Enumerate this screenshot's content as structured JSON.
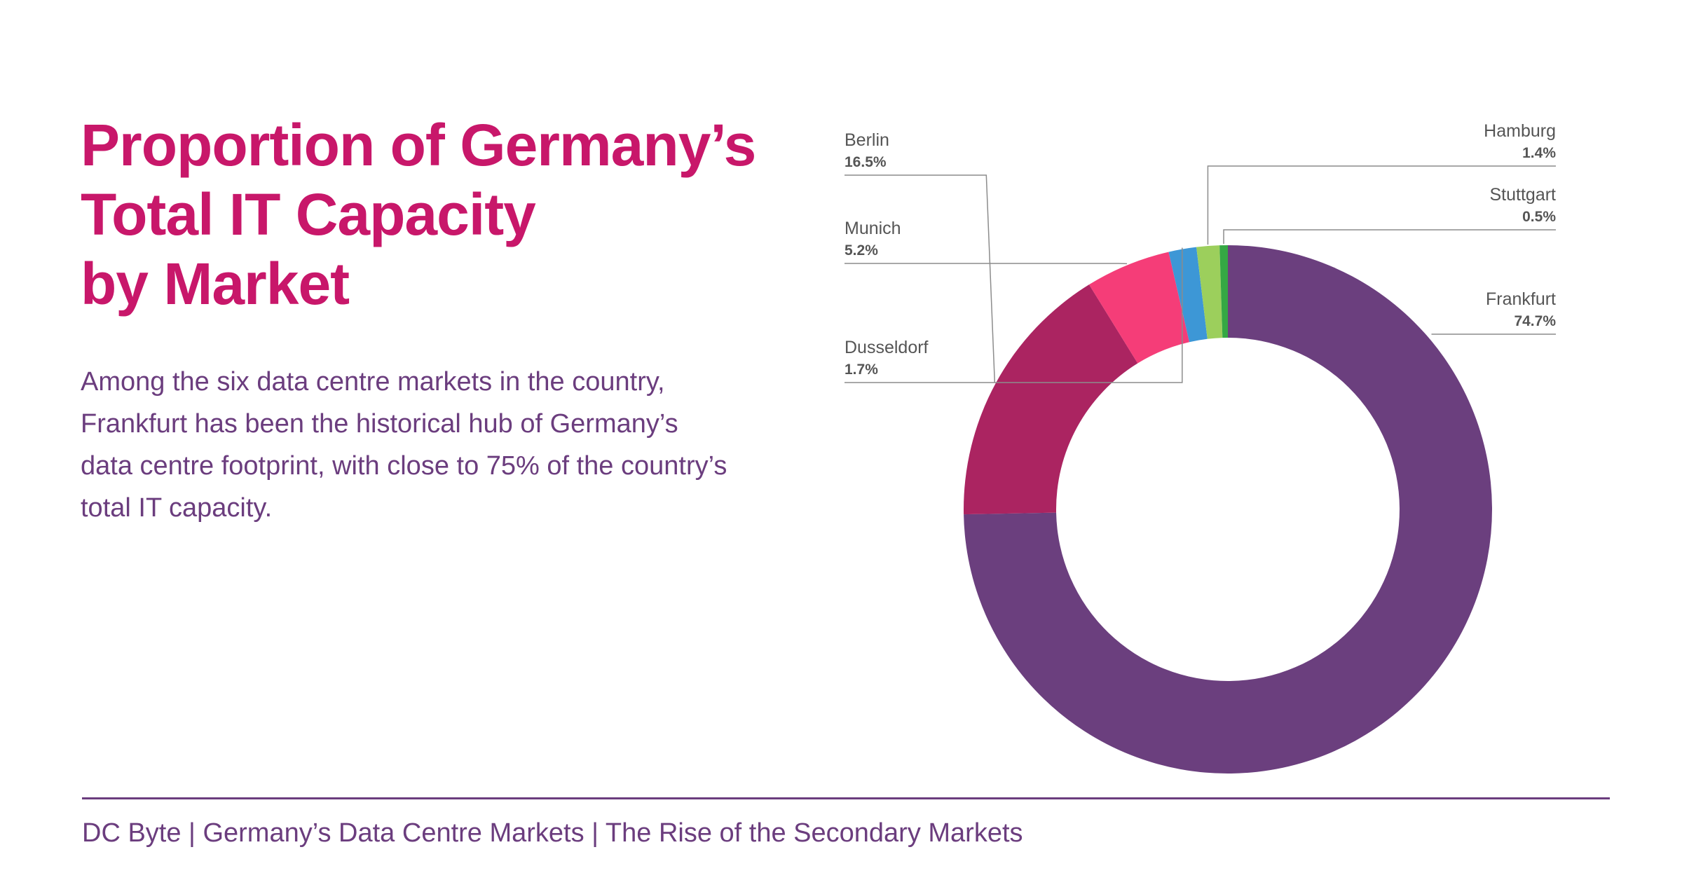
{
  "title_lines": [
    "Proportion of Germany’s",
    "Total IT Capacity",
    "by Market"
  ],
  "description": "Among the six data centre markets in the country, Frankfurt has been the historical hub of Germany’s data centre footprint, with close to 75% of the country’s total IT capacity.",
  "footer": "DC Byte | Germany’s Data Centre Markets | The Rise of the Secondary Markets",
  "chart_data": {
    "type": "pie",
    "style": "donut",
    "title": "Proportion of Germany’s Total IT Capacity by Market",
    "start": "12 o'clock, clockwise",
    "slices": [
      {
        "name": "Frankfurt",
        "value": 74.7,
        "label": "74.7%",
        "color": "#6b3f7e",
        "label_side": "right"
      },
      {
        "name": "Berlin",
        "value": 16.5,
        "label": "16.5%",
        "color": "#ab2461",
        "label_side": "left"
      },
      {
        "name": "Munich",
        "value": 5.2,
        "label": "5.2%",
        "color": "#f53d78",
        "label_side": "left"
      },
      {
        "name": "Dusseldorf",
        "value": 1.7,
        "label": "1.7%",
        "color": "#3d97d6",
        "label_side": "left"
      },
      {
        "name": "Hamburg",
        "value": 1.4,
        "label": "1.4%",
        "color": "#9ccf5c",
        "label_side": "right"
      },
      {
        "name": "Stuttgart",
        "value": 0.5,
        "label": "0.5%",
        "color": "#35a844",
        "label_side": "right"
      }
    ]
  }
}
